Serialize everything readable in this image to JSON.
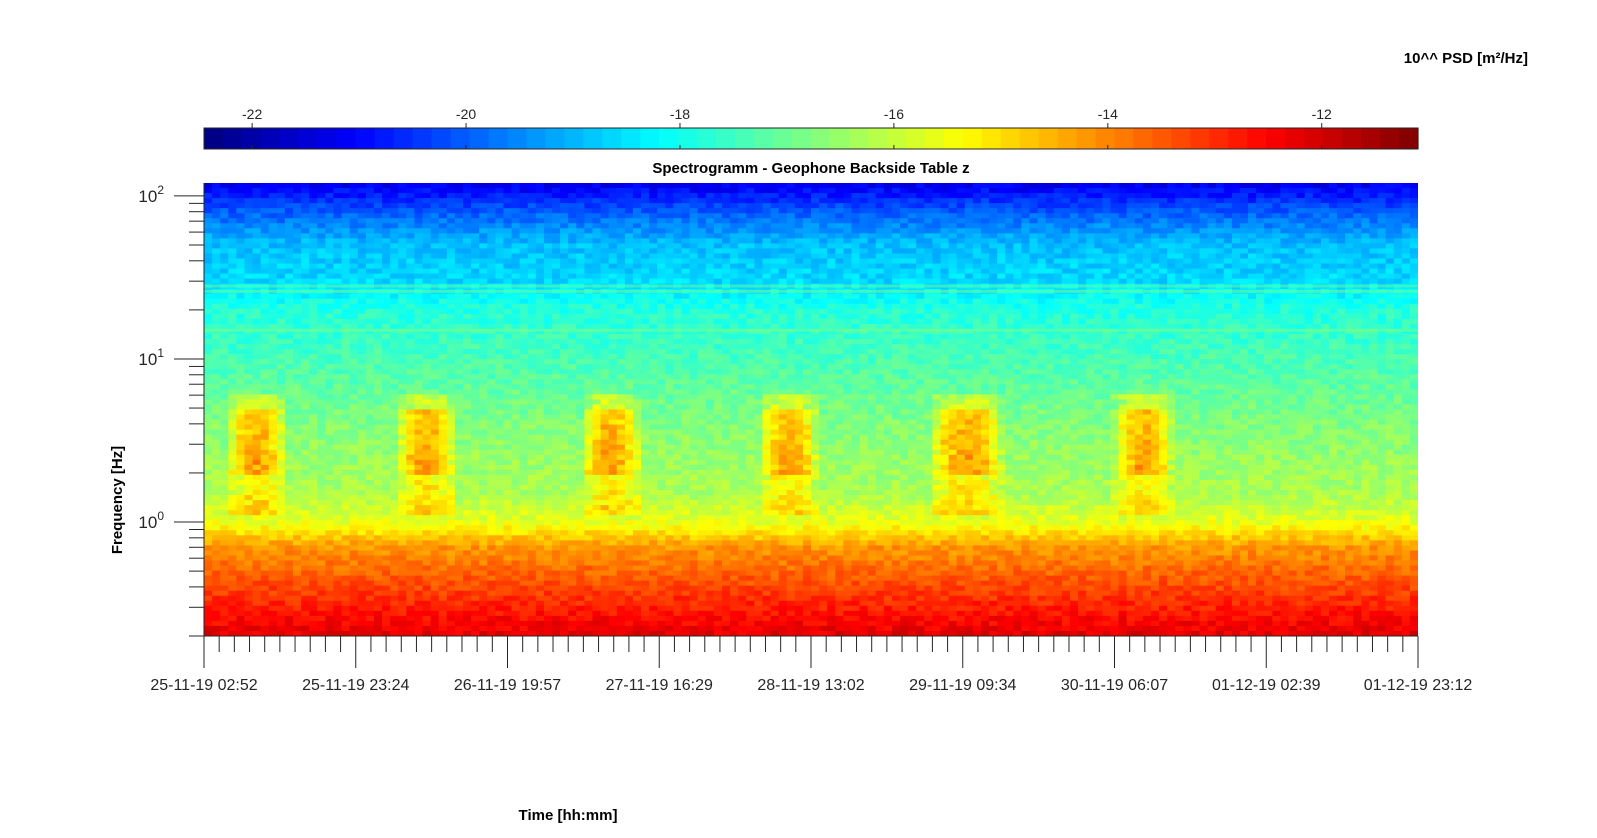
{
  "chart_data": {
    "type": "heatmap",
    "title": "Spectrogramm - Geophone Backside Table z",
    "xlabel": "Time [hh:mm]",
    "ylabel": "Frequency [Hz]",
    "y_scale": "log",
    "ylim": [
      0.2,
      120
    ],
    "y_ticks": [
      {
        "value": 1,
        "base": "10",
        "exp": "0"
      },
      {
        "value": 10,
        "base": "10",
        "exp": "1"
      },
      {
        "value": 100,
        "base": "10",
        "exp": "2"
      }
    ],
    "x_ticks": [
      "25-11-19 02:52",
      "25-11-19 23:24",
      "26-11-19 19:57",
      "27-11-19 16:29",
      "28-11-19 13:02",
      "29-11-19 09:34",
      "30-11-19 06:07",
      "01-12-19 02:39",
      "01-12-19 23:12"
    ],
    "colorbar": {
      "label": "10^^ PSD [m²/Hz]",
      "range": [
        -22.45,
        -11.1
      ],
      "ticks": [
        "-22",
        "-20",
        "-18",
        "-16",
        "-14",
        "-12"
      ],
      "colormap": "jet"
    },
    "profile_by_frequency": [
      {
        "freq": 120,
        "value": -21.3
      },
      {
        "freq": 80,
        "value": -20.0
      },
      {
        "freq": 50,
        "value": -18.9
      },
      {
        "freq": 30,
        "value": -18.6
      },
      {
        "freq": 20,
        "value": -17.8
      },
      {
        "freq": 10,
        "value": -17.4
      },
      {
        "freq": 5,
        "value": -16.9
      },
      {
        "freq": 3,
        "value": -16.6
      },
      {
        "freq": 1.5,
        "value": -16.3
      },
      {
        "freq": 1.0,
        "value": -15.6
      },
      {
        "freq": 0.7,
        "value": -14.2
      },
      {
        "freq": 0.4,
        "value": -13.3
      },
      {
        "freq": 0.2,
        "value": -12.2
      }
    ],
    "daily_activity_band_hz": [
      2,
      5
    ],
    "activity_periods": [
      {
        "start": "25-11-19 06:00",
        "end": "25-11-19 14:00"
      },
      {
        "start": "26-11-19 05:00",
        "end": "26-11-19 13:00"
      },
      {
        "start": "27-11-19 06:00",
        "end": "27-11-19 14:00"
      },
      {
        "start": "28-11-19 06:00",
        "end": "28-11-19 14:00"
      },
      {
        "start": "29-11-19 05:00",
        "end": "29-11-19 15:00"
      },
      {
        "start": "30-11-19 06:00",
        "end": "30-11-19 14:00"
      }
    ],
    "grid": false,
    "colorbar_location": "top"
  }
}
